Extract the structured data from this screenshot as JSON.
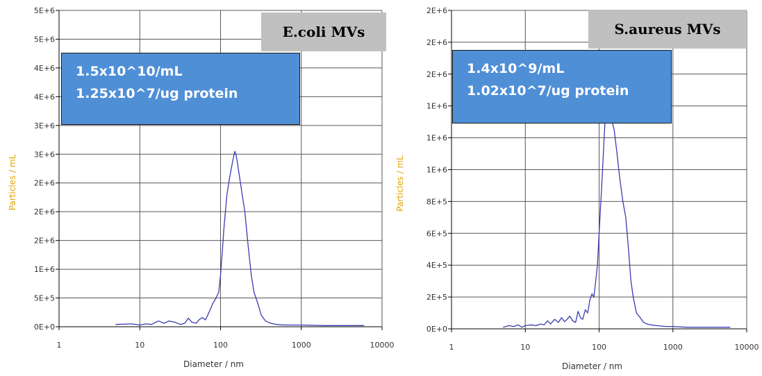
{
  "chart_data": [
    {
      "type": "line",
      "title": "",
      "xlabel": "Diameter / nm",
      "ylabel": "Particles / mL",
      "x_scale": "log",
      "xlim": [
        1,
        10000
      ],
      "x_ticks": [
        "1",
        "10",
        "100",
        "1000",
        "10000"
      ],
      "y_ticks": [
        "0E+0",
        "5E+5",
        "1E+6",
        "2E+6",
        "2E+6",
        "2E+6",
        "3E+6",
        "3E+6",
        "4E+6",
        "4E+6",
        "5E+6",
        "5E+6"
      ],
      "ylim": [
        0,
        5500000
      ],
      "grid": true,
      "line_color": "#3a3ab0",
      "label_box": "E.coli MVs",
      "info_lines": [
        "1.5x10^10/mL",
        "1.25x10^7/ug protein"
      ],
      "series": [
        {
          "x": [
            5,
            8,
            10,
            12,
            14,
            17,
            20,
            23,
            27,
            32,
            36,
            40,
            44,
            50,
            55,
            60,
            65,
            72,
            80,
            88,
            95,
            100,
            105,
            110,
            120,
            130,
            140,
            150,
            155,
            160,
            170,
            185,
            200,
            220,
            240,
            260,
            290,
            320,
            360,
            400,
            450,
            500,
            600,
            800,
            1000,
            2000,
            4000,
            6000
          ],
          "y": [
            40000,
            50000,
            30000,
            50000,
            40000,
            100000,
            60000,
            100000,
            80000,
            40000,
            60000,
            150000,
            80000,
            60000,
            130000,
            160000,
            120000,
            250000,
            400000,
            500000,
            600000,
            900000,
            1300000,
            1700000,
            2300000,
            2600000,
            2850000,
            3050000,
            3000000,
            2900000,
            2650000,
            2300000,
            2000000,
            1400000,
            900000,
            600000,
            400000,
            200000,
            100000,
            70000,
            50000,
            40000,
            30000,
            30000,
            30000,
            20000,
            20000,
            20000
          ]
        }
      ]
    },
    {
      "type": "line",
      "title": "",
      "xlabel": "Diameter / nm",
      "ylabel": "Particles / mL",
      "x_scale": "log",
      "xlim": [
        1,
        10000
      ],
      "x_ticks": [
        "1",
        "10",
        "100",
        "1000",
        "10000"
      ],
      "y_ticks": [
        "0E+0",
        "2E+5",
        "4E+5",
        "6E+5",
        "8E+5",
        "1E+6",
        "1E+6",
        "1E+6",
        "2E+6",
        "2E+6",
        "2E+6"
      ],
      "ylim": [
        0,
        2000000
      ],
      "grid": true,
      "line_color": "#3a3ab0",
      "label_box": "S.aureus MVs",
      "info_lines": [
        "1.4x10^9/mL",
        "1.02x10^7/ug protein"
      ],
      "series": [
        {
          "x": [
            5,
            6,
            7,
            8,
            9,
            10,
            12,
            14,
            16,
            18,
            20,
            22,
            25,
            28,
            31,
            34,
            37,
            40,
            44,
            48,
            52,
            56,
            60,
            65,
            70,
            75,
            80,
            85,
            90,
            95,
            100,
            110,
            120,
            130,
            140,
            150,
            160,
            175,
            190,
            210,
            230,
            250,
            270,
            290,
            320,
            360,
            400,
            450,
            500,
            600,
            800,
            1000,
            1500,
            2000,
            3000,
            4000,
            6000
          ],
          "y": [
            10000,
            20000,
            15000,
            25000,
            10000,
            20000,
            25000,
            20000,
            30000,
            25000,
            50000,
            30000,
            60000,
            40000,
            70000,
            45000,
            60000,
            80000,
            50000,
            40000,
            110000,
            70000,
            60000,
            120000,
            100000,
            180000,
            220000,
            200000,
            300000,
            400000,
            600000,
            950000,
            1300000,
            1400000,
            1340000,
            1300000,
            1250000,
            1100000,
            950000,
            800000,
            700000,
            500000,
            300000,
            200000,
            100000,
            70000,
            40000,
            30000,
            25000,
            20000,
            15000,
            15000,
            10000,
            10000,
            10000,
            10000,
            10000
          ]
        }
      ]
    }
  ]
}
